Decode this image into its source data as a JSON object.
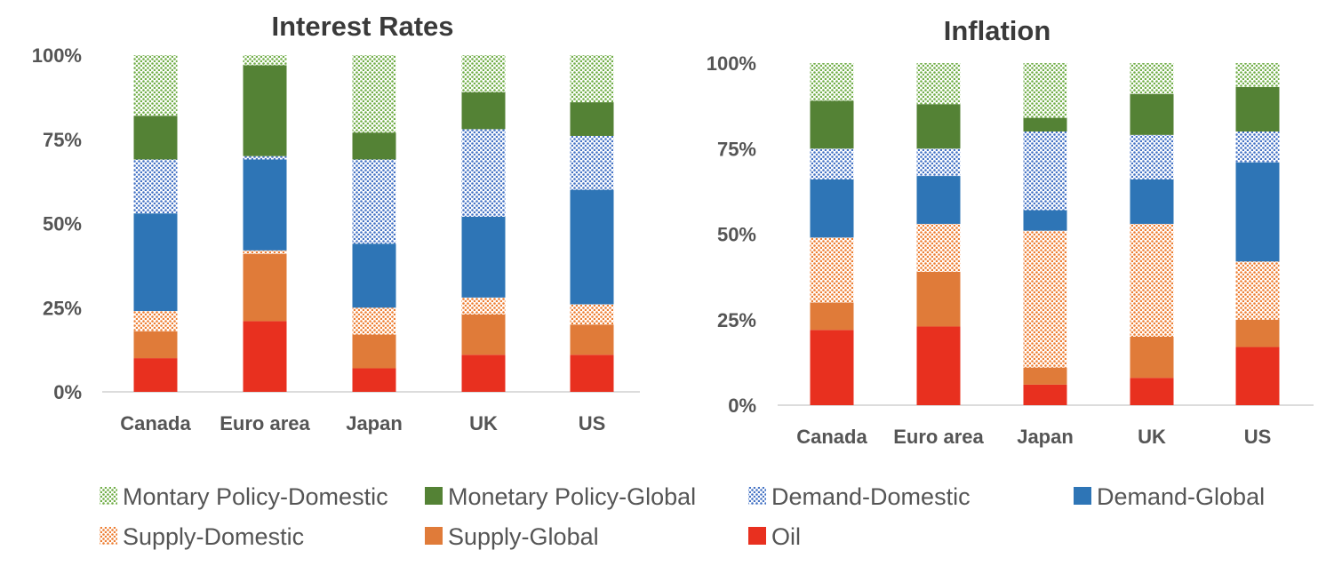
{
  "legend": [
    {
      "key": "mp_dom",
      "label": "Montary Policy-Domestic",
      "color": "#70ad47",
      "pattern": "dots"
    },
    {
      "key": "mp_glob",
      "label": "Monetary Policy-Global",
      "color": "#548235",
      "pattern": "solid"
    },
    {
      "key": "dem_dom",
      "label": "Demand-Domestic",
      "color": "#4472c4",
      "pattern": "dots"
    },
    {
      "key": "dem_glob",
      "label": "Demand-Global",
      "color": "#2e75b6",
      "pattern": "solid"
    },
    {
      "key": "sup_dom",
      "label": "Supply-Domestic",
      "color": "#ed7d31",
      "pattern": "dots"
    },
    {
      "key": "sup_glob",
      "label": "Supply-Global",
      "color": "#e07b39",
      "pattern": "solid"
    },
    {
      "key": "oil",
      "label": "Oil",
      "color": "#e8301f",
      "pattern": "solid"
    }
  ],
  "chart_data": [
    {
      "type": "bar",
      "stacked": true,
      "title": "Interest Rates",
      "xlabel": "",
      "ylabel": "",
      "ylim": [
        0,
        100
      ],
      "yticks": [
        "0%",
        "25%",
        "50%",
        "75%",
        "100%"
      ],
      "categories": [
        "Canada",
        "Euro area",
        "Japan",
        "UK",
        "US"
      ],
      "series": [
        {
          "name": "Oil",
          "values": [
            10,
            21,
            7,
            11,
            11
          ]
        },
        {
          "name": "Supply-Global",
          "values": [
            8,
            20,
            10,
            12,
            9
          ]
        },
        {
          "name": "Supply-Domestic",
          "values": [
            6,
            1,
            8,
            5,
            6
          ]
        },
        {
          "name": "Demand-Global",
          "values": [
            29,
            27,
            19,
            24,
            34
          ]
        },
        {
          "name": "Demand-Domestic",
          "values": [
            16,
            1,
            25,
            26,
            16
          ]
        },
        {
          "name": "Monetary Policy-Global",
          "values": [
            13,
            27,
            8,
            11,
            10
          ]
        },
        {
          "name": "Montary Policy-Domestic",
          "values": [
            18,
            3,
            23,
            11,
            14
          ]
        }
      ]
    },
    {
      "type": "bar",
      "stacked": true,
      "title": "Inflation",
      "xlabel": "",
      "ylabel": "",
      "ylim": [
        0,
        100
      ],
      "yticks": [
        "0%",
        "25%",
        "50%",
        "75%",
        "100%"
      ],
      "categories": [
        "Canada",
        "Euro area",
        "Japan",
        "UK",
        "US"
      ],
      "series": [
        {
          "name": "Oil",
          "values": [
            22,
            23,
            6,
            8,
            17
          ]
        },
        {
          "name": "Supply-Global",
          "values": [
            8,
            16,
            5,
            12,
            8
          ]
        },
        {
          "name": "Supply-Domestic",
          "values": [
            19,
            14,
            40,
            33,
            17
          ]
        },
        {
          "name": "Demand-Global",
          "values": [
            17,
            14,
            6,
            13,
            29
          ]
        },
        {
          "name": "Demand-Domestic",
          "values": [
            9,
            8,
            23,
            13,
            9
          ]
        },
        {
          "name": "Monetary Policy-Global",
          "values": [
            14,
            13,
            4,
            12,
            13
          ]
        },
        {
          "name": "Montary Policy-Domestic",
          "values": [
            11,
            12,
            16,
            9,
            7
          ]
        }
      ]
    }
  ]
}
